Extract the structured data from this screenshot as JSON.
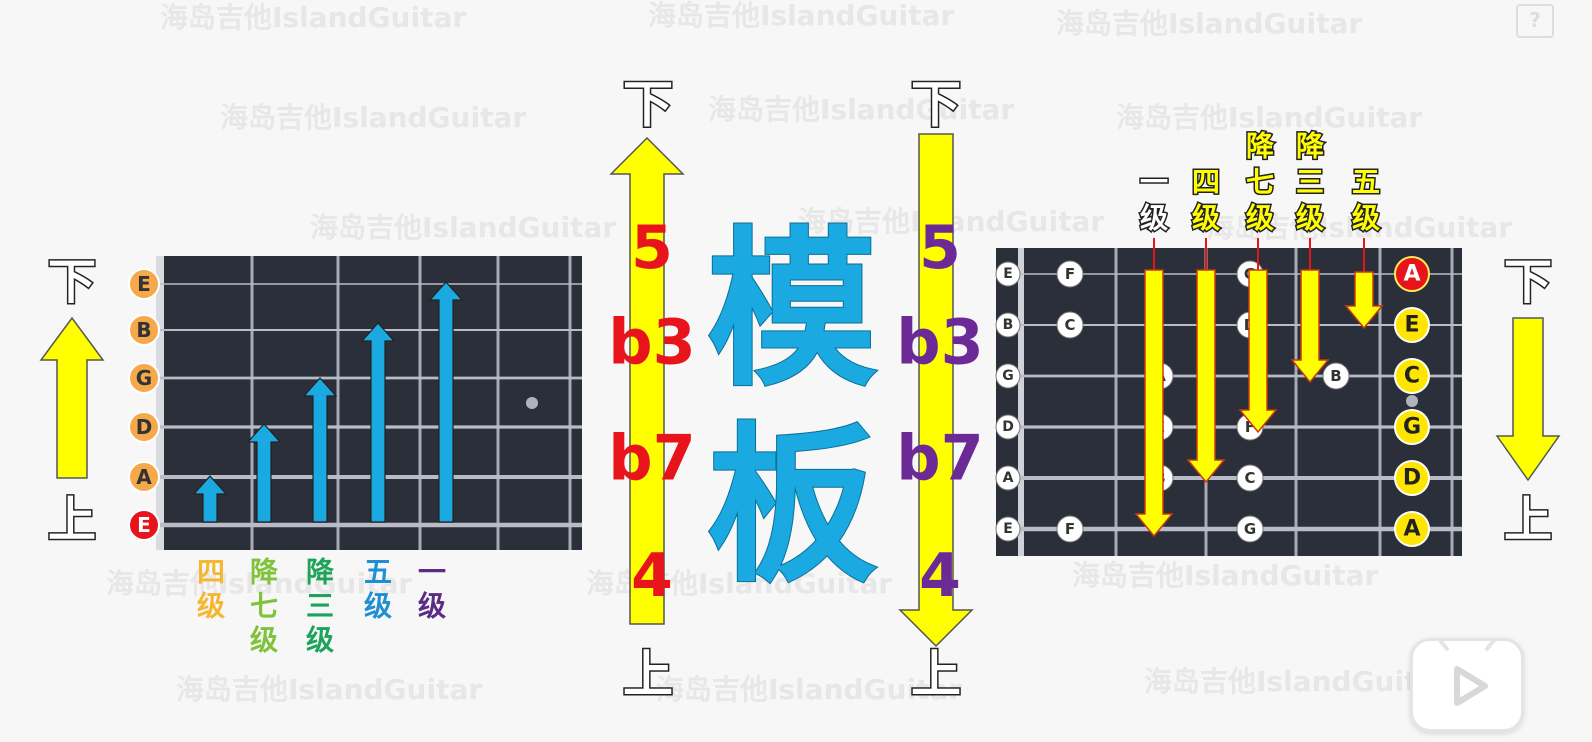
{
  "vertical_words": {
    "up": "上",
    "down": "下"
  },
  "left_panel": {
    "open_strings": [
      "E",
      "B",
      "G",
      "D",
      "A",
      "E"
    ],
    "degree_labels": [
      {
        "chars": [
          "四",
          "级"
        ],
        "color": "#f5b731"
      },
      {
        "chars": [
          "降",
          "七",
          "级"
        ],
        "color": "#7ec33a"
      },
      {
        "chars": [
          "降",
          "三",
          "级"
        ],
        "color": "#1ea45a"
      },
      {
        "chars": [
          "五",
          "级"
        ],
        "color": "#1f8fd1"
      },
      {
        "chars": [
          "一",
          "级"
        ],
        "color": "#5b2c86"
      }
    ]
  },
  "center": {
    "title_chars": [
      "模",
      "板"
    ],
    "title_color": "#1aa9e0",
    "intervals": [
      "5",
      "b3",
      "b7",
      "4"
    ],
    "interval_colors": {
      "left": "#e8141c",
      "right": "#6b2a96"
    }
  },
  "right_panel": {
    "string_labels": [
      "E",
      "B",
      "G",
      "D",
      "A",
      "E"
    ],
    "target_notes": [
      "A",
      "E",
      "C",
      "G",
      "D",
      "A"
    ],
    "fret_notes": [
      {
        "string": 0,
        "fret": 1,
        "note": "F"
      },
      {
        "string": 0,
        "fret": 3,
        "note": "G"
      },
      {
        "string": 1,
        "fret": 1,
        "note": "C"
      },
      {
        "string": 1,
        "fret": 3,
        "note": "D"
      },
      {
        "string": 2,
        "fret": 2,
        "note": "A"
      },
      {
        "string": 2,
        "fret": 4,
        "note": "B"
      },
      {
        "string": 3,
        "fret": 2,
        "note": "E"
      },
      {
        "string": 3,
        "fret": 3,
        "note": "F"
      },
      {
        "string": 4,
        "fret": 2,
        "note": "B"
      },
      {
        "string": 4,
        "fret": 3,
        "note": "C"
      },
      {
        "string": 5,
        "fret": 1,
        "note": "F"
      },
      {
        "string": 5,
        "fret": 3,
        "note": "G"
      }
    ],
    "degree_labels": [
      {
        "chars": [
          "一",
          "级"
        ]
      },
      {
        "chars": [
          "四",
          "级"
        ]
      },
      {
        "chars": [
          "降",
          "七",
          "级"
        ]
      },
      {
        "chars": [
          "降",
          "三",
          "级"
        ]
      },
      {
        "chars": [
          "五",
          "级"
        ]
      }
    ]
  },
  "watermark": "海岛吉他IslandGuitar",
  "help_icon": "?",
  "colors": {
    "fretboard": "#2b2f3a",
    "string": "#b9bcc6",
    "fret": "#a8abb3",
    "arrow_yellow": "#ffff00",
    "arrow_blue": "#1aa9e0",
    "note_orange": "#f5a94a",
    "note_red": "#e8141c",
    "note_yellow": "#ffe600"
  }
}
